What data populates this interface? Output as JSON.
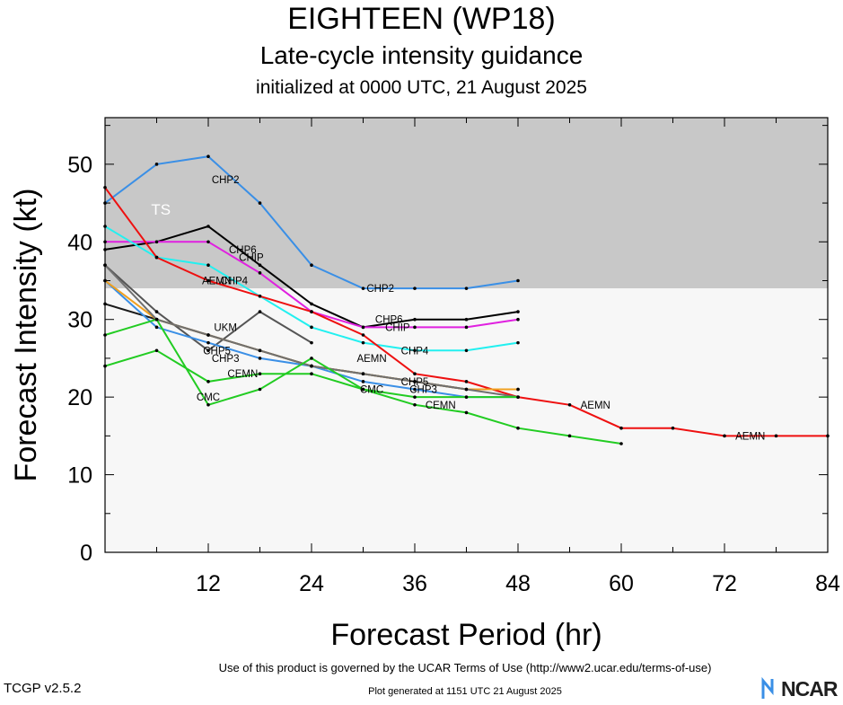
{
  "header": {
    "title": "EIGHTEEN (WP18)",
    "subtitle": "Late-cycle intensity guidance",
    "initialized": "initialized at 0000 UTC, 21 August 2025"
  },
  "footer": {
    "terms": "Use of this product is governed by the UCAR Terms of Use (http://www2.ucar.edu/terms-of-use)",
    "version": "TCGP v2.5.2",
    "generated": "Plot generated at 1151 UTC   21 August 2025",
    "logo_text": "NCAR"
  },
  "chart_data": {
    "type": "line",
    "xlabel": "Forecast Period (hr)",
    "ylabel": "Forecast Intensity (kt)",
    "xlim": [
      0,
      84
    ],
    "ylim": [
      0,
      56
    ],
    "xticks": [
      12,
      24,
      36,
      48,
      60,
      72,
      84
    ],
    "yticks": [
      0,
      10,
      20,
      30,
      40,
      50
    ],
    "bands": [
      {
        "label": "TS",
        "from": 34,
        "to": 56,
        "color": "#c8c8c8"
      },
      {
        "label": "",
        "from": 0,
        "to": 34,
        "color": "#f7f7f7"
      }
    ],
    "series": [
      {
        "name": "CHP2",
        "color": "#3a8fe6",
        "label_at": [
          [
            14,
            48
          ],
          [
            32,
            34
          ]
        ],
        "points": [
          [
            0,
            45
          ],
          [
            6,
            50
          ],
          [
            12,
            51
          ],
          [
            18,
            45
          ],
          [
            24,
            37
          ],
          [
            30,
            34
          ],
          [
            36,
            34
          ],
          [
            42,
            34
          ],
          [
            48,
            35
          ]
        ]
      },
      {
        "name": "CHP6",
        "color": "#000000",
        "label_at": [
          [
            16,
            39
          ],
          [
            33,
            30
          ]
        ],
        "points": [
          [
            0,
            39
          ],
          [
            6,
            40
          ],
          [
            12,
            42
          ],
          [
            18,
            37
          ],
          [
            24,
            32
          ],
          [
            30,
            29
          ],
          [
            36,
            30
          ],
          [
            42,
            30
          ],
          [
            48,
            31
          ]
        ]
      },
      {
        "name": "CHIP",
        "color": "#e020e0",
        "label_at": [
          [
            17,
            38
          ],
          [
            34,
            29
          ]
        ],
        "points": [
          [
            0,
            40
          ],
          [
            6,
            40
          ],
          [
            12,
            40
          ],
          [
            18,
            36
          ],
          [
            24,
            31
          ],
          [
            30,
            29
          ],
          [
            36,
            29
          ],
          [
            42,
            29
          ],
          [
            48,
            30
          ]
        ]
      },
      {
        "name": "CHP4",
        "color": "#22f0f0",
        "label_at": [
          [
            15,
            35
          ],
          [
            36,
            26
          ]
        ],
        "points": [
          [
            0,
            42
          ],
          [
            6,
            38
          ],
          [
            12,
            37
          ],
          [
            18,
            33
          ],
          [
            24,
            29
          ],
          [
            30,
            27
          ],
          [
            36,
            26
          ],
          [
            42,
            26
          ],
          [
            48,
            27
          ]
        ]
      },
      {
        "name": "AEMN",
        "color": "#ee1010",
        "label_at": [
          [
            13,
            35
          ],
          [
            31,
            25
          ],
          [
            57,
            19
          ],
          [
            75,
            15
          ]
        ],
        "points": [
          [
            0,
            47
          ],
          [
            6,
            38
          ],
          [
            12,
            35
          ],
          [
            18,
            33
          ],
          [
            24,
            31
          ],
          [
            30,
            28
          ],
          [
            36,
            23
          ],
          [
            42,
            22
          ],
          [
            48,
            20
          ],
          [
            54,
            19
          ],
          [
            60,
            16
          ],
          [
            66,
            16
          ],
          [
            72,
            15
          ],
          [
            78,
            15
          ],
          [
            84,
            15
          ]
        ]
      },
      {
        "name": "UKM",
        "color": "#555555",
        "label_at": [
          [
            14,
            29
          ]
        ],
        "points": [
          [
            0,
            37
          ],
          [
            6,
            31
          ],
          [
            12,
            26
          ],
          [
            18,
            31
          ],
          [
            24,
            27
          ]
        ]
      },
      {
        "name": "CHP5",
        "color": "#1a1a1a",
        "label_at": [
          [
            13,
            26
          ],
          [
            36,
            22
          ]
        ],
        "points": [
          [
            0,
            32
          ],
          [
            6,
            30
          ],
          [
            12,
            28
          ],
          [
            18,
            26
          ],
          [
            24,
            24
          ],
          [
            30,
            23
          ],
          [
            36,
            22
          ],
          [
            42,
            21
          ],
          [
            48,
            21
          ]
        ]
      },
      {
        "name": "CHP3",
        "color": "#3a8fe6",
        "label_at": [
          [
            14,
            25
          ],
          [
            37,
            21
          ]
        ],
        "points": [
          [
            0,
            35
          ],
          [
            6,
            29
          ],
          [
            12,
            27
          ],
          [
            18,
            25
          ],
          [
            24,
            24
          ],
          [
            30,
            22
          ],
          [
            36,
            21
          ],
          [
            42,
            20
          ],
          [
            48,
            20
          ]
        ]
      },
      {
        "name": "",
        "color": "#f0a020",
        "label_at": [],
        "points": [
          [
            0,
            35
          ],
          [
            6,
            30
          ],
          [
            12,
            28
          ],
          [
            18,
            26
          ],
          [
            24,
            24
          ],
          [
            30,
            23
          ],
          [
            36,
            22
          ],
          [
            42,
            21
          ],
          [
            48,
            21
          ]
        ]
      },
      {
        "name": "",
        "color": "#707070",
        "label_at": [],
        "points": [
          [
            0,
            37
          ],
          [
            6,
            30
          ],
          [
            12,
            28
          ],
          [
            18,
            26
          ],
          [
            24,
            24
          ],
          [
            30,
            23
          ],
          [
            36,
            22
          ],
          [
            42,
            21
          ],
          [
            48,
            20
          ]
        ]
      },
      {
        "name": "CEMN",
        "color": "#22cc22",
        "label_at": [
          [
            16,
            23
          ],
          [
            39,
            19
          ]
        ],
        "points": [
          [
            0,
            24
          ],
          [
            6,
            26
          ],
          [
            12,
            22
          ],
          [
            18,
            23
          ],
          [
            24,
            23
          ],
          [
            30,
            21
          ],
          [
            36,
            19
          ],
          [
            42,
            18
          ],
          [
            48,
            16
          ],
          [
            54,
            15
          ],
          [
            60,
            14
          ]
        ]
      },
      {
        "name": "CMC",
        "color": "#22cc22",
        "label_at": [
          [
            12,
            20
          ],
          [
            31,
            21
          ]
        ],
        "points": [
          [
            0,
            28
          ],
          [
            6,
            30
          ],
          [
            12,
            19
          ],
          [
            18,
            21
          ],
          [
            24,
            25
          ],
          [
            30,
            21
          ],
          [
            36,
            20
          ],
          [
            42,
            20
          ],
          [
            48,
            20
          ]
        ]
      }
    ]
  }
}
